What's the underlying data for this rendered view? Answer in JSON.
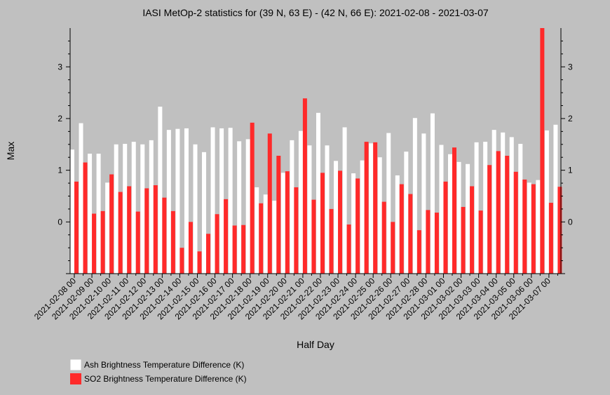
{
  "chart_data": {
    "type": "bar",
    "title": "IASI MetOp-2 statistics for (39 N, 63 E) - (42 N, 66 E): 2021-02-08 - 2021-03-07",
    "xlabel": "Half Day",
    "ylabel": "Max",
    "ylim": [
      -1.0,
      3.75
    ],
    "yticks": [
      0,
      1,
      2,
      3
    ],
    "grid": false,
    "legend_position": "bottom-left",
    "tick_labels": [
      "2021-02-08 00",
      "2021-02-09 00",
      "2021-02-10 00",
      "2021-02-11 00",
      "2021-02-12 00",
      "2021-02-13 00",
      "2021-02-14 00",
      "2021-02-15 00",
      "2021-02-16 00",
      "2021-02-17 00",
      "2021-02-18 00",
      "2021-02-19 00",
      "2021-02-20 00",
      "2021-02-21 00",
      "2021-02-22 00",
      "2021-02-23 00",
      "2021-02-24 00",
      "2021-02-25 00",
      "2021-02-26 00",
      "2021-02-27 00",
      "2021-02-28 00",
      "2021-03-01 00",
      "2021-03-02 00",
      "2021-03-03 00",
      "2021-03-04 00",
      "2021-03-05 00",
      "2021-03-06 00",
      "2021-03-07 00"
    ],
    "series": [
      {
        "name": "Ash Brightness Temperature Difference (K)",
        "color": "#ffffff",
        "values": [
          1.4,
          1.91,
          1.32,
          1.32,
          0.76,
          1.5,
          1.51,
          1.55,
          1.5,
          1.58,
          2.23,
          1.78,
          1.8,
          1.81,
          1.5,
          1.35,
          1.83,
          1.81,
          1.82,
          1.56,
          1.6,
          0.67,
          0.53,
          0.41,
          0.95,
          1.58,
          1.76,
          1.48,
          2.11,
          1.48,
          1.18,
          1.83,
          0.94,
          1.19,
          1.52,
          1.25,
          1.72,
          0.9,
          1.36,
          2.01,
          1.71,
          2.1,
          1.49,
          1.31,
          1.16,
          1.12,
          1.54,
          1.55,
          1.78,
          1.73,
          1.64,
          1.51,
          0.76,
          0.81,
          1.77,
          1.88
        ]
      },
      {
        "name": "SO2 Brightness Temperature Difference (K)",
        "color": "#ff2a2a",
        "values": [
          0.78,
          1.15,
          0.16,
          0.21,
          0.92,
          0.58,
          0.69,
          0.2,
          0.65,
          0.71,
          0.47,
          0.21,
          -0.5,
          0.0,
          -0.57,
          -0.23,
          0.15,
          0.44,
          -0.07,
          -0.06,
          1.92,
          0.36,
          1.71,
          1.28,
          0.98,
          0.67,
          2.39,
          0.43,
          0.95,
          0.25,
          0.99,
          -0.05,
          0.84,
          1.55,
          1.54,
          0.39,
          0.0,
          0.73,
          0.54,
          -0.16,
          0.23,
          0.18,
          0.78,
          1.44,
          0.29,
          0.69,
          0.22,
          1.1,
          1.37,
          1.28,
          0.97,
          0.82,
          0.73,
          3.75,
          0.37,
          0.68
        ]
      }
    ]
  }
}
